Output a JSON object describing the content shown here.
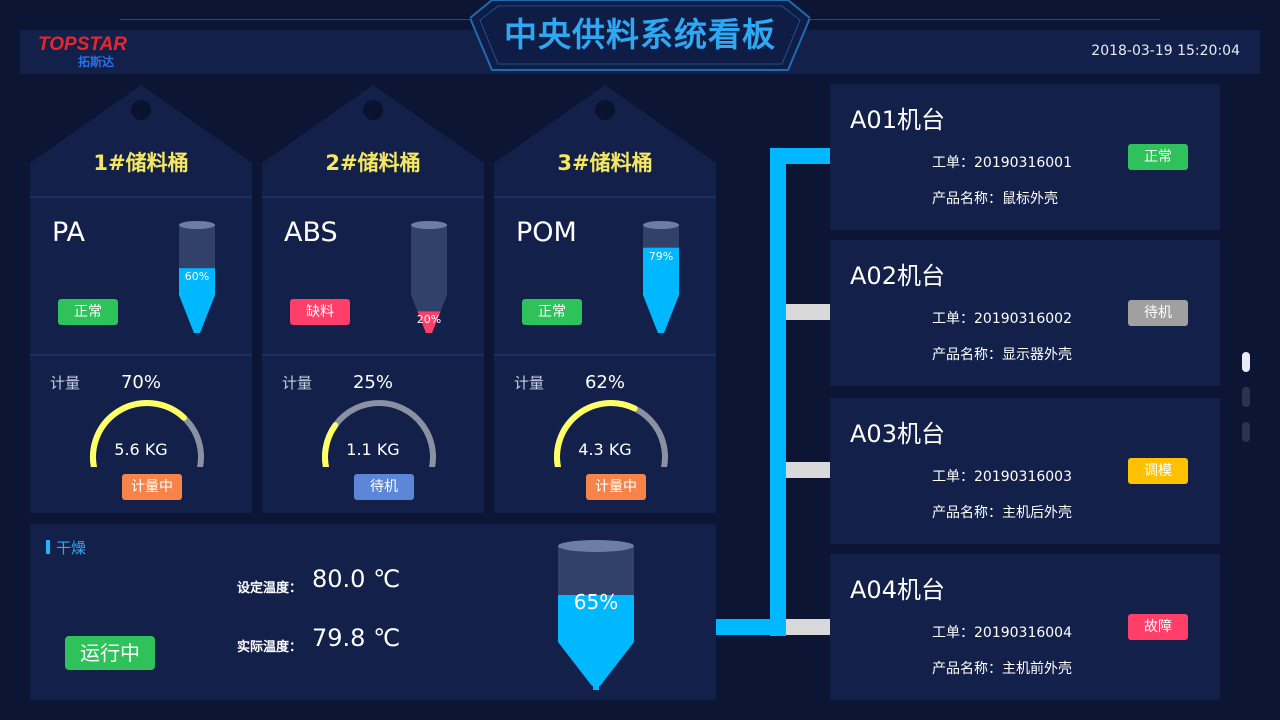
{
  "header": {
    "title": "中央供料系统看板",
    "logo_main": "TOPSTAR",
    "logo_sub": "拓斯达",
    "datetime": "2018-03-19  15:20:04"
  },
  "tanks": [
    {
      "title": "1#储料桶",
      "material": "PA",
      "status": "正常",
      "status_color": "#2fc25b",
      "level": 0.6,
      "level_text": "60%",
      "fill_color": "#00b8ff",
      "meter_label": "计量",
      "meter_pct": 0.7,
      "meter_pct_text": "70%",
      "meter_kg": "5.6 KG",
      "meter_status": "计量中",
      "meter_status_color": "#f5834a",
      "gauge_color": "#ffff66"
    },
    {
      "title": "2#储料桶",
      "material": "ABS",
      "status": "缺料",
      "status_color": "#ff3e6a",
      "level": 0.2,
      "level_text": "20%",
      "fill_color": "#ff3e6a",
      "meter_label": "计量",
      "meter_pct": 0.25,
      "meter_pct_text": "25%",
      "meter_kg": "1.1 KG",
      "meter_status": "待机",
      "meter_status_color": "#5b87d6",
      "gauge_color": "#ffff66"
    },
    {
      "title": "3#储料桶",
      "material": "POM",
      "status": "正常",
      "status_color": "#2fc25b",
      "level": 0.79,
      "level_text": "79%",
      "fill_color": "#00b8ff",
      "meter_label": "计量",
      "meter_pct": 0.62,
      "meter_pct_text": "62%",
      "meter_kg": "4.3 KG",
      "meter_status": "计量中",
      "meter_status_color": "#f5834a",
      "gauge_color": "#ffff66"
    }
  ],
  "dryer": {
    "title": "干燥",
    "set_label": "设定温度：",
    "set_value": "80.0  ℃",
    "actual_label": "实际温度：",
    "actual_value": "79.8  ℃",
    "status": "运行中",
    "level": 0.65,
    "level_text": "65%"
  },
  "machines": [
    {
      "name": "A01机台",
      "order_label": "工单：20190316001",
      "product_label": "产品名称：鼠标外壳",
      "status": "正常",
      "status_color": "#2fc25b"
    },
    {
      "name": "A02机台",
      "order_label": "工单：20190316002",
      "product_label": "产品名称：显示器外壳",
      "status": "待机",
      "status_color": "#a0a0a0"
    },
    {
      "name": "A03机台",
      "order_label": "工单：20190316003",
      "product_label": "产品名称：主机后外壳",
      "status": "调模",
      "status_color": "#ffc000"
    },
    {
      "name": "A04机台",
      "order_label": "工单：20190316004",
      "product_label": "产品名称：主机前外壳",
      "status": "故障",
      "status_color": "#ff3e6a"
    }
  ],
  "colors": {
    "pipe_active": "#00b8ff",
    "pipe_idle": "#d9d9d9",
    "panel": "#13204a"
  }
}
